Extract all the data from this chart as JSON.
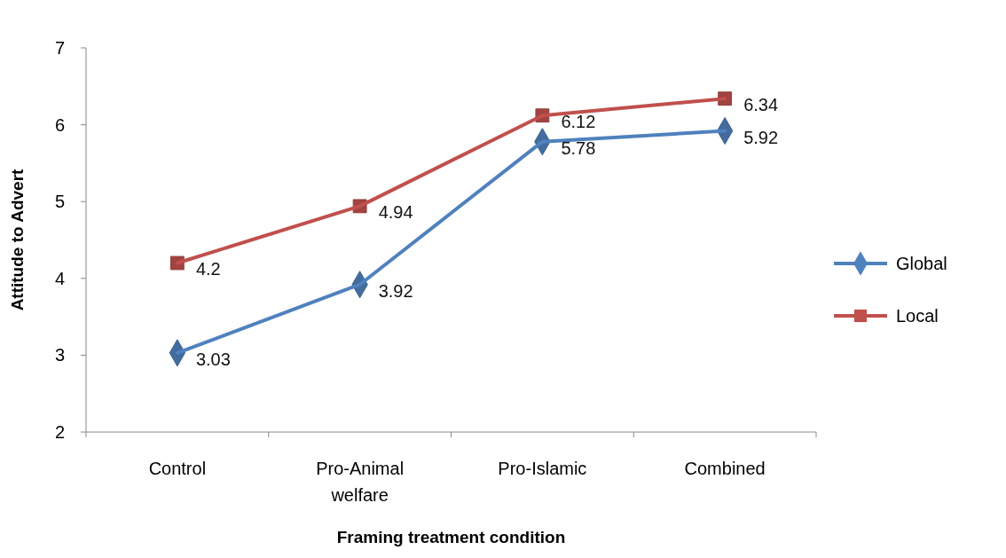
{
  "chart_data": {
    "type": "line",
    "xlabel": "Framing treatment condition",
    "ylabel": "Attitude to Advert",
    "categories": [
      "Control",
      "Pro-Animal welfare",
      "Pro-Islamic",
      "Combined"
    ],
    "series": [
      {
        "name": "Global",
        "color": "#4f81bd",
        "marker": "diamond",
        "values": [
          3.03,
          3.92,
          5.78,
          5.92
        ]
      },
      {
        "name": "Local",
        "color": "#c0504d",
        "marker": "square",
        "values": [
          4.2,
          4.94,
          6.12,
          6.34
        ]
      }
    ],
    "ylim": [
      2,
      7
    ],
    "yticks": [
      2,
      3,
      4,
      5,
      6,
      7
    ],
    "data_labels": true,
    "legend": "right",
    "grid": false,
    "line_style": "solid"
  }
}
